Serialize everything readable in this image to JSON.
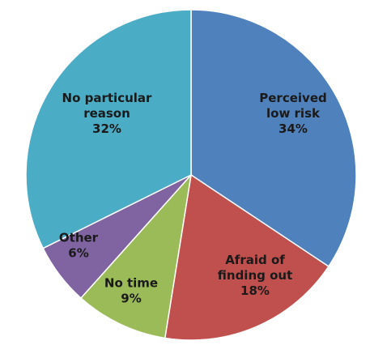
{
  "chart_data": {
    "type": "pie",
    "title": "",
    "slices": [
      {
        "label_lines": [
          "Perceived",
          "low risk"
        ],
        "percent_text": "34%",
        "value": 34,
        "color": "#4f81bd"
      },
      {
        "label_lines": [
          "Afraid of",
          "finding out"
        ],
        "percent_text": "18%",
        "value": 18,
        "color": "#c0504d"
      },
      {
        "label_lines": [
          "No time"
        ],
        "percent_text": "9%",
        "value": 9,
        "color": "#9bbb59"
      },
      {
        "label_lines": [
          "Other"
        ],
        "percent_text": "6%",
        "value": 6,
        "color": "#8064a2"
      },
      {
        "label_lines": [
          "No particular",
          "reason"
        ],
        "percent_text": "32%",
        "value": 32,
        "color": "#4bacc6"
      }
    ]
  }
}
